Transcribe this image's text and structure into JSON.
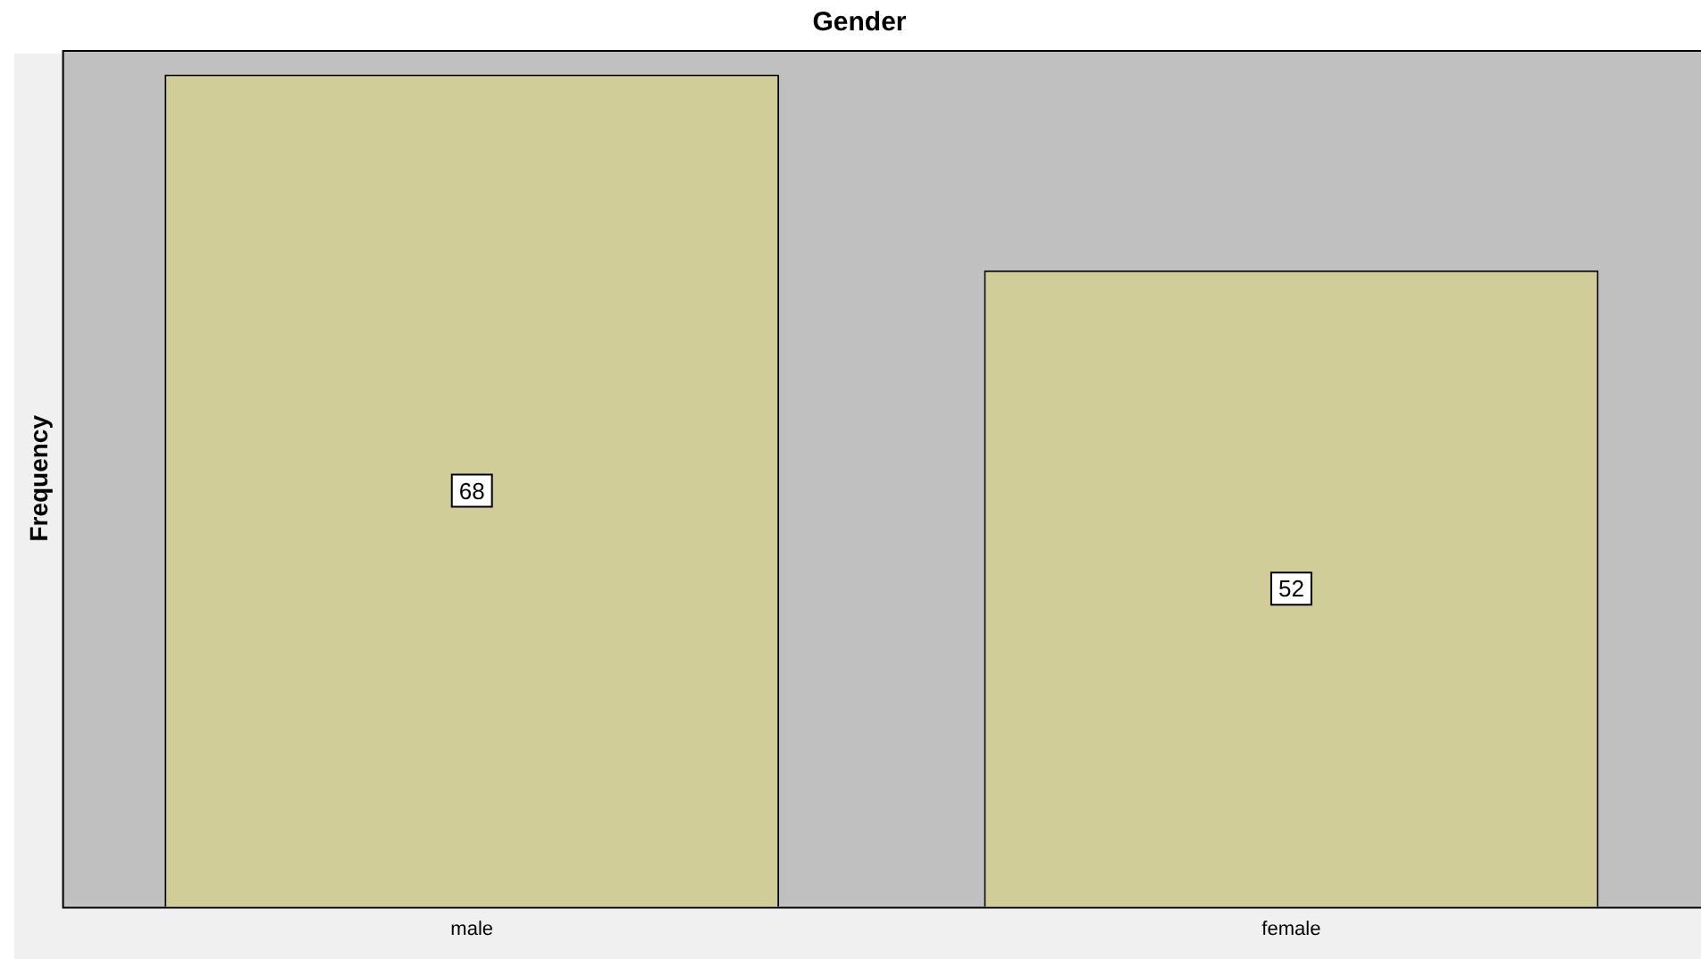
{
  "chart_data": {
    "type": "bar",
    "title": "Gender",
    "ylabel": "Frequency",
    "categories": [
      "male",
      "female"
    ],
    "values": [
      68,
      52
    ],
    "color": "#d1cd98",
    "data_labels": true,
    "grid": false,
    "legend": false,
    "tick_labels": "x"
  }
}
